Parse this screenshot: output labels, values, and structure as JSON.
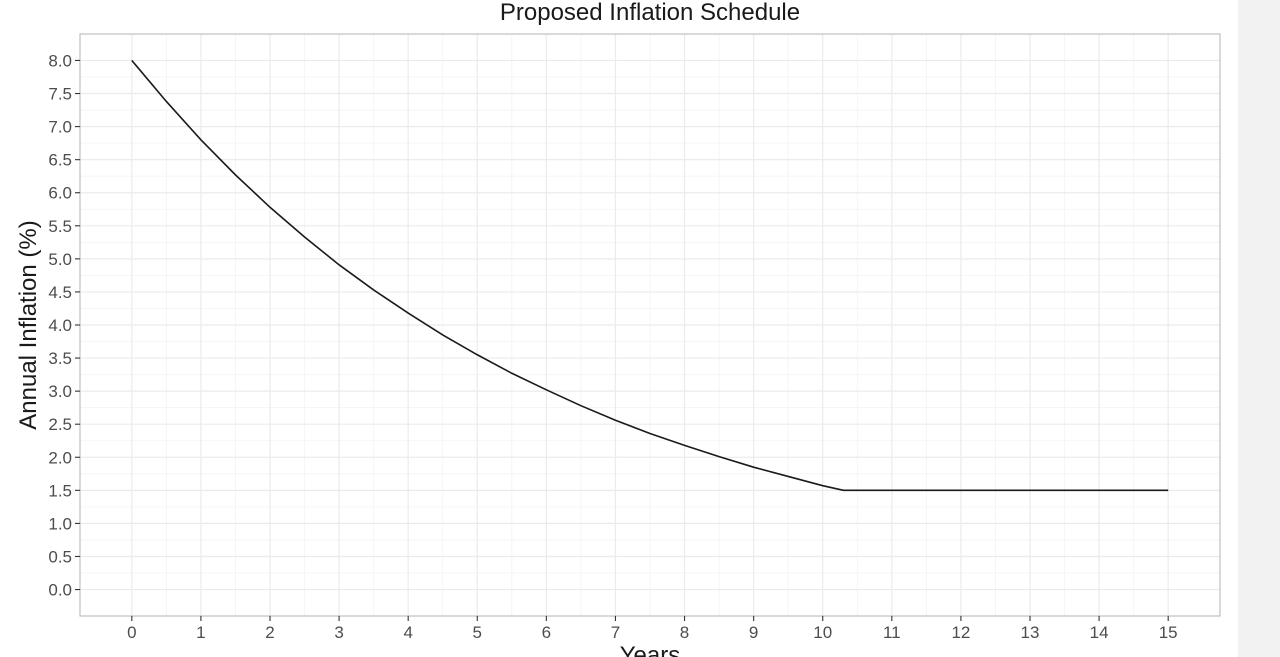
{
  "chart_data": {
    "type": "line",
    "title": "Proposed Inflation Schedule",
    "xlabel": "Years",
    "ylabel": "Annual Inflation (%)",
    "xlim": [
      -0.75,
      15.75
    ],
    "ylim": [
      -0.4,
      8.4
    ],
    "x_ticks": [
      0,
      1,
      2,
      3,
      4,
      5,
      6,
      7,
      8,
      9,
      10,
      11,
      12,
      13,
      14,
      15
    ],
    "y_ticks": [
      0.0,
      0.5,
      1.0,
      1.5,
      2.0,
      2.5,
      3.0,
      3.5,
      4.0,
      4.5,
      5.0,
      5.5,
      6.0,
      6.5,
      7.0,
      7.5,
      8.0
    ],
    "y_tick_labels": [
      "0.0",
      "0.5",
      "1.0",
      "1.5",
      "2.0",
      "2.5",
      "3.0",
      "3.5",
      "4.0",
      "4.5",
      "5.0",
      "5.5",
      "6.0",
      "6.5",
      "7.0",
      "7.5",
      "8.0"
    ],
    "grid": true,
    "line_color": "#1a1a1a",
    "grid_color": "#ebebeb",
    "panel_border_color": "#b3b3b3",
    "series": [
      {
        "x": [
          0,
          0.5,
          1,
          1.5,
          2,
          2.5,
          3,
          3.5,
          4,
          4.5,
          5,
          5.5,
          6,
          6.5,
          7,
          7.5,
          8,
          8.5,
          9,
          9.5,
          10,
          10.3,
          11,
          12,
          13,
          14,
          15
        ],
        "y": [
          8.0,
          7.38,
          6.8,
          6.27,
          5.78,
          5.33,
          4.91,
          4.53,
          4.18,
          3.85,
          3.55,
          3.27,
          3.02,
          2.78,
          2.56,
          2.36,
          2.18,
          2.01,
          1.85,
          1.71,
          1.57,
          1.5,
          1.5,
          1.5,
          1.5,
          1.5,
          1.5
        ]
      }
    ]
  }
}
